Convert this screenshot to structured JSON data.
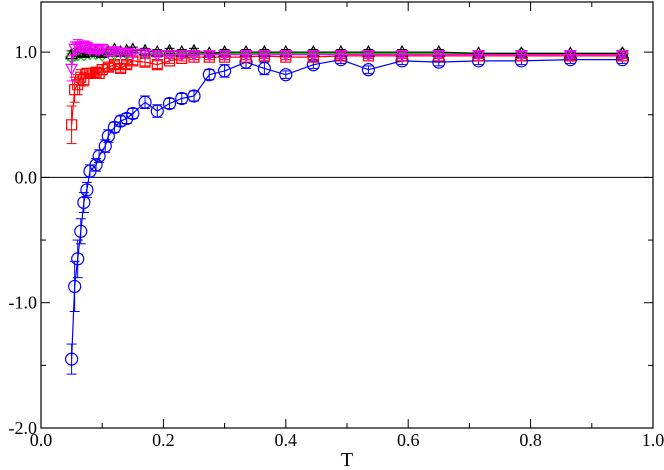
{
  "chart_data": {
    "type": "scatter",
    "title": "",
    "xlabel": "T",
    "ylabel": "",
    "xlim": [
      0.0,
      1.0
    ],
    "ylim": [
      -2.0,
      1.4
    ],
    "xticks": [
      0.0,
      0.2,
      0.4,
      0.6,
      0.8,
      1.0
    ],
    "xtick_labels": [
      "0.0",
      "0.2",
      "0.4",
      "0.6",
      "0.8",
      "1.0"
    ],
    "yticks": [
      -2.0,
      -1.0,
      0.0,
      1.0
    ],
    "ytick_labels": [
      "-2.0",
      "-1.0",
      "0.0",
      "1.0"
    ],
    "reference_line_y": 0.0,
    "grid": false,
    "legend": "none",
    "series": [
      {
        "color": "#0000ff",
        "marker": "circle",
        "x": [
          0.05,
          0.055,
          0.06,
          0.065,
          0.07,
          0.075,
          0.08,
          0.09,
          0.095,
          0.105,
          0.11,
          0.12,
          0.13,
          0.14,
          0.15,
          0.17,
          0.19,
          0.21,
          0.23,
          0.25,
          0.275,
          0.3,
          0.335,
          0.365,
          0.4,
          0.445,
          0.49,
          0.535,
          0.59,
          0.65,
          0.715,
          0.785,
          0.865,
          0.95
        ],
        "y": [
          -1.45,
          -0.87,
          -0.65,
          -0.43,
          -0.2,
          -0.1,
          0.05,
          0.1,
          0.17,
          0.25,
          0.33,
          0.4,
          0.45,
          0.47,
          0.51,
          0.6,
          0.53,
          0.59,
          0.63,
          0.65,
          0.82,
          0.85,
          0.92,
          0.87,
          0.82,
          0.9,
          0.94,
          0.86,
          0.93,
          0.92,
          0.93,
          0.93,
          0.94,
          0.94
        ],
        "err": [
          0.12,
          0.2,
          0.15,
          0.1,
          0.08,
          0.06,
          0.05,
          0.05,
          0.05,
          0.05,
          0.05,
          0.04,
          0.04,
          0.04,
          0.04,
          0.05,
          0.05,
          0.04,
          0.04,
          0.04,
          0.04,
          0.05,
          0.05,
          0.05,
          0.03,
          0.03,
          0.03,
          0.03,
          0.03,
          0.03,
          0.03,
          0.03,
          0.03,
          0.03
        ]
      },
      {
        "color": "#ff0000",
        "marker": "square",
        "x": [
          0.05,
          0.055,
          0.06,
          0.065,
          0.07,
          0.075,
          0.08,
          0.085,
          0.09,
          0.095,
          0.1,
          0.11,
          0.12,
          0.13,
          0.14,
          0.15,
          0.17,
          0.19,
          0.21,
          0.23,
          0.25,
          0.275,
          0.3,
          0.335,
          0.365,
          0.4,
          0.445,
          0.49,
          0.535,
          0.59,
          0.65,
          0.715,
          0.785,
          0.865,
          0.95
        ],
        "y": [
          0.42,
          0.7,
          0.74,
          0.8,
          0.78,
          0.83,
          0.83,
          0.83,
          0.84,
          0.83,
          0.86,
          0.88,
          0.9,
          0.87,
          0.9,
          0.93,
          0.92,
          0.9,
          0.93,
          0.95,
          0.96,
          0.96,
          0.96,
          0.96,
          0.97,
          0.96,
          0.96,
          0.97,
          0.97,
          0.97,
          0.97,
          0.97,
          0.97,
          0.97,
          0.97
        ],
        "err": [
          0.15,
          0.1,
          0.08,
          0.06,
          0.05,
          0.04,
          0.04,
          0.04,
          0.04,
          0.04,
          0.04,
          0.03,
          0.03,
          0.03,
          0.03,
          0.03,
          0.03,
          0.03,
          0.02,
          0.02,
          0.02,
          0.02,
          0.02,
          0.02,
          0.02,
          0.02,
          0.02,
          0.02,
          0.02,
          0.02,
          0.02,
          0.02,
          0.02,
          0.02,
          0.02
        ]
      },
      {
        "color": "#00cc00",
        "marker": "diamond",
        "x": [
          0.05,
          0.06,
          0.07,
          0.08,
          0.09,
          0.1,
          0.12,
          0.14,
          0.17,
          0.21,
          0.25,
          0.3,
          0.365,
          0.445,
          0.535,
          0.65,
          0.785,
          0.95
        ],
        "y": [
          0.96,
          0.98,
          0.98,
          0.99,
          0.99,
          0.98,
          0.99,
          0.99,
          0.99,
          0.99,
          0.99,
          0.99,
          0.99,
          0.99,
          0.99,
          0.99,
          0.99,
          0.99
        ],
        "err": [
          0.03,
          0.02,
          0.02,
          0.02,
          0.02,
          0.02,
          0.02,
          0.02,
          0.02,
          0.02,
          0.02,
          0.02,
          0.02,
          0.02,
          0.02,
          0.02,
          0.02,
          0.02
        ]
      },
      {
        "color": "#000000",
        "marker": "triangle-up",
        "x": [
          0.05,
          0.06,
          0.07,
          0.08,
          0.09,
          0.1,
          0.11,
          0.12,
          0.13,
          0.14,
          0.15,
          0.17,
          0.19,
          0.21,
          0.23,
          0.25,
          0.275,
          0.3,
          0.335,
          0.365,
          0.4,
          0.445,
          0.49,
          0.535,
          0.59,
          0.65,
          0.715,
          0.785,
          0.865,
          0.95
        ],
        "y": [
          0.98,
          1.0,
          0.99,
          1.0,
          1.0,
          0.99,
          1.0,
          1.02,
          1.0,
          1.01,
          1.02,
          1.01,
          1.0,
          1.01,
          1.0,
          1.01,
          0.99,
          1.0,
          1.0,
          1.0,
          1.0,
          1.0,
          1.0,
          1.0,
          1.0,
          1.0,
          0.99,
          0.99,
          0.99,
          0.99
        ],
        "err": [
          0.03,
          0.03,
          0.03,
          0.02,
          0.02,
          0.02,
          0.02,
          0.02,
          0.02,
          0.02,
          0.02,
          0.02,
          0.02,
          0.02,
          0.02,
          0.02,
          0.02,
          0.02,
          0.02,
          0.02,
          0.02,
          0.02,
          0.02,
          0.02,
          0.02,
          0.02,
          0.02,
          0.02,
          0.02,
          0.02
        ]
      },
      {
        "color": "#ff00ff",
        "marker": "triangle-down",
        "x": [
          0.05,
          0.055,
          0.06,
          0.065,
          0.07,
          0.075,
          0.08,
          0.085,
          0.09,
          0.095,
          0.1,
          0.11,
          0.12,
          0.13,
          0.14,
          0.15,
          0.17,
          0.19,
          0.21,
          0.23,
          0.25,
          0.275,
          0.3,
          0.335,
          0.365,
          0.4,
          0.445,
          0.49,
          0.535,
          0.59,
          0.65,
          0.715,
          0.785,
          0.865,
          0.95
        ],
        "y": [
          0.87,
          1.03,
          1.05,
          1.04,
          1.05,
          1.04,
          1.02,
          1.03,
          1.02,
          1.02,
          1.03,
          1.0,
          1.01,
          1.0,
          1.0,
          0.99,
          0.99,
          0.98,
          0.98,
          0.98,
          0.98,
          0.98,
          0.98,
          0.98,
          0.98,
          0.98,
          0.98,
          0.98,
          0.98,
          0.98,
          0.98,
          0.98,
          0.98,
          0.98,
          0.98
        ],
        "err": [
          0.1,
          0.05,
          0.05,
          0.04,
          0.04,
          0.04,
          0.03,
          0.03,
          0.03,
          0.03,
          0.03,
          0.03,
          0.02,
          0.02,
          0.02,
          0.02,
          0.02,
          0.02,
          0.02,
          0.02,
          0.02,
          0.02,
          0.02,
          0.02,
          0.02,
          0.02,
          0.02,
          0.02,
          0.02,
          0.02,
          0.02,
          0.02,
          0.02,
          0.02,
          0.02
        ]
      }
    ]
  }
}
